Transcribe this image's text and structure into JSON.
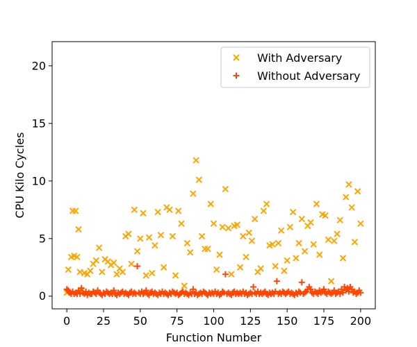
{
  "chart_data": {
    "type": "scatter",
    "title": "",
    "xlabel": "Function Number",
    "ylabel": "CPU Kilo Cycles",
    "xlim": [
      -10,
      210
    ],
    "ylim": [
      -1.1,
      22.1
    ],
    "xticks": [
      0,
      25,
      50,
      75,
      100,
      125,
      150,
      175,
      200
    ],
    "yticks": [
      0,
      5,
      10,
      15,
      20
    ],
    "grid": false,
    "legend_position": "top-right",
    "series": [
      {
        "name": "With Adversary",
        "marker": "x",
        "color": "#ffa500",
        "x": [
          0,
          1,
          3,
          4,
          5,
          6,
          7,
          8,
          9,
          10,
          12,
          14,
          16,
          18,
          20,
          22,
          24,
          26,
          28,
          30,
          32,
          34,
          36,
          38,
          40,
          42,
          44,
          46,
          48,
          50,
          52,
          54,
          56,
          58,
          60,
          62,
          64,
          66,
          68,
          70,
          72,
          74,
          76,
          78,
          80,
          82,
          84,
          86,
          88,
          90,
          92,
          94,
          96,
          98,
          100,
          102,
          104,
          106,
          108,
          110,
          112,
          114,
          116,
          118,
          120,
          122,
          124,
          126,
          128,
          130,
          132,
          134,
          136,
          138,
          140,
          142,
          144,
          146,
          148,
          150,
          152,
          154,
          156,
          158,
          160,
          162,
          164,
          166,
          168,
          170,
          172,
          174,
          176,
          178,
          180,
          182,
          184,
          186,
          188,
          190,
          192,
          194,
          196,
          198,
          200
        ],
        "y": [
          0.3,
          2.3,
          3.4,
          7.4,
          3.5,
          7.4,
          3.4,
          5.8,
          2.1,
          0.5,
          2.0,
          1.9,
          2.2,
          2.8,
          3.1,
          4.2,
          2.1,
          3.2,
          3.0,
          2.7,
          2.9,
          1.9,
          2.4,
          2.1,
          5.2,
          5.4,
          2.8,
          7.5,
          3.9,
          5.0,
          7.2,
          1.8,
          5.1,
          2.0,
          4.4,
          7.3,
          5.3,
          2.5,
          7.7,
          7.5,
          5.2,
          1.8,
          7.4,
          6.3,
          0.9,
          4.6,
          3.8,
          8.9,
          11.8,
          10.1,
          5.2,
          4.1,
          4.1,
          8.0,
          6.3,
          2.3,
          3.6,
          6.0,
          9.3,
          5.9,
          1.9,
          6.1,
          6.2,
          2.5,
          5.2,
          3.4,
          5.5,
          4.8,
          6.7,
          2.1,
          2.4,
          7.4,
          8.0,
          4.4,
          4.5,
          2.6,
          4.6,
          5.7,
          2.2,
          3.1,
          6.0,
          7.3,
          3.3,
          4.6,
          6.7,
          3.9,
          6.1,
          6.4,
          4.5,
          8.0,
          3.6,
          7.1,
          7.0,
          4.9,
          1.3,
          4.8,
          5.4,
          6.6,
          3.3,
          8.6,
          9.7,
          7.7,
          4.7,
          9.1,
          6.3
        ]
      },
      {
        "name": "Without Adversary",
        "marker": "+",
        "color": "#ff4500",
        "x": [
          0,
          1,
          2,
          3,
          4,
          5,
          6,
          7,
          8,
          9,
          10,
          11,
          12,
          13,
          14,
          15,
          16,
          17,
          18,
          19,
          20,
          21,
          22,
          23,
          24,
          25,
          26,
          27,
          28,
          29,
          30,
          31,
          32,
          33,
          34,
          35,
          36,
          37,
          38,
          39,
          40,
          41,
          42,
          43,
          44,
          45,
          46,
          47,
          48,
          49,
          50,
          51,
          52,
          53,
          54,
          55,
          56,
          57,
          58,
          59,
          60,
          61,
          62,
          63,
          64,
          65,
          66,
          67,
          68,
          69,
          70,
          71,
          72,
          73,
          74,
          75,
          76,
          77,
          78,
          79,
          80,
          81,
          82,
          83,
          84,
          85,
          86,
          87,
          88,
          89,
          90,
          91,
          92,
          93,
          94,
          95,
          96,
          97,
          98,
          99,
          100,
          101,
          102,
          103,
          104,
          105,
          106,
          107,
          108,
          109,
          110,
          111,
          112,
          113,
          114,
          115,
          116,
          117,
          118,
          119,
          120,
          121,
          122,
          123,
          124,
          125,
          126,
          127,
          128,
          129,
          130,
          131,
          132,
          133,
          134,
          135,
          136,
          137,
          138,
          139,
          140,
          141,
          142,
          143,
          144,
          145,
          146,
          147,
          148,
          149,
          150,
          151,
          152,
          153,
          154,
          155,
          156,
          157,
          158,
          159,
          160,
          161,
          162,
          163,
          164,
          165,
          166,
          167,
          168,
          169,
          170,
          171,
          172,
          173,
          174,
          175,
          176,
          177,
          178,
          179,
          180,
          181,
          182,
          183,
          184,
          185,
          186,
          187,
          188,
          189,
          190,
          191,
          192,
          193,
          194,
          195,
          196,
          197,
          198,
          199,
          200
        ],
        "y": [
          0.6,
          0.5,
          0.3,
          0.2,
          0.4,
          0.2,
          0.3,
          0.2,
          0.5,
          0.2,
          0.7,
          0.3,
          0.2,
          0.4,
          0.1,
          0.3,
          0.2,
          0.2,
          0.4,
          0.3,
          0.2,
          0.5,
          0.3,
          0.2,
          0.1,
          0.3,
          0.2,
          0.4,
          0.3,
          0.2,
          0.3,
          0.2,
          0.5,
          0.2,
          0.1,
          0.3,
          0.2,
          0.3,
          0.4,
          0.2,
          0.3,
          0.2,
          0.1,
          0.3,
          0.4,
          0.2,
          0.3,
          0.2,
          2.6,
          0.3,
          0.2,
          0.4,
          0.2,
          0.3,
          0.5,
          0.2,
          0.1,
          0.3,
          0.4,
          0.2,
          0.3,
          0.2,
          0.1,
          0.3,
          0.2,
          0.4,
          0.2,
          0.3,
          0.2,
          0.1,
          0.3,
          0.2,
          0.4,
          0.3,
          0.2,
          0.3,
          0.1,
          0.2,
          0.3,
          0.4,
          0.2,
          0.3,
          0.2,
          0.1,
          0.3,
          0.2,
          0.6,
          0.2,
          0.3,
          0.1,
          0.2,
          0.3,
          0.2,
          0.4,
          0.3,
          0.2,
          0.1,
          0.3,
          0.2,
          0.3,
          0.2,
          0.4,
          0.2,
          0.3,
          0.1,
          0.2,
          0.4,
          0.3,
          1.9,
          0.2,
          0.3,
          0.2,
          0.1,
          0.3,
          0.4,
          0.2,
          0.3,
          0.2,
          0.3,
          0.2,
          0.4,
          0.2,
          0.3,
          0.1,
          0.2,
          0.3,
          0.2,
          0.8,
          0.3,
          0.2,
          0.4,
          0.2,
          0.3,
          0.2,
          0.3,
          0.4,
          0.2,
          0.1,
          0.3,
          0.2,
          0.3,
          0.2,
          0.4,
          1.3,
          0.2,
          0.3,
          0.2,
          0.4,
          0.3,
          0.2,
          0.3,
          0.4,
          0.2,
          0.3,
          0.2,
          0.1,
          0.3,
          0.2,
          0.4,
          0.3,
          1.2,
          0.2,
          0.3,
          0.4,
          0.6,
          0.8,
          0.6,
          0.3,
          0.2,
          0.4,
          0.3,
          0.2,
          0.5,
          0.3,
          0.4,
          0.6,
          0.3,
          0.2,
          0.4,
          0.3,
          0.2,
          0.3,
          0.5,
          0.2,
          0.3,
          0.4,
          0.2,
          0.6,
          0.3,
          0.8,
          0.5,
          0.7,
          0.4,
          0.8,
          0.6,
          0.3,
          0.4,
          0.2,
          0.3,
          0.5,
          0.3
        ]
      }
    ]
  }
}
